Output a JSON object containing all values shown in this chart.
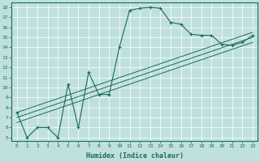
{
  "title": "",
  "xlabel": "Humidex (Indice chaleur)",
  "bg_color": "#c0e0e0",
  "line_color": "#1a6b5a",
  "x_min": 0,
  "x_max": 23,
  "y_min": 5,
  "y_max": 18,
  "line1_x": [
    0,
    1,
    2,
    3,
    4,
    5,
    6,
    7,
    8,
    9,
    10,
    11,
    12,
    13,
    14,
    15,
    16,
    17,
    18,
    19,
    20,
    21,
    22,
    23
  ],
  "line1_y": [
    7.5,
    5.0,
    6.0,
    6.0,
    5.0,
    10.3,
    6.0,
    11.5,
    9.3,
    9.3,
    14.0,
    17.7,
    17.9,
    18.0,
    17.9,
    16.5,
    16.3,
    15.3,
    15.2,
    15.2,
    14.3,
    14.2,
    14.5,
    15.2
  ],
  "line2_x": [
    0,
    23
  ],
  "line2_y": [
    7.5,
    15.5
  ],
  "line3_x": [
    0,
    23
  ],
  "line3_y": [
    7.0,
    15.0
  ],
  "line4_x": [
    0,
    23
  ],
  "line4_y": [
    6.5,
    14.5
  ]
}
